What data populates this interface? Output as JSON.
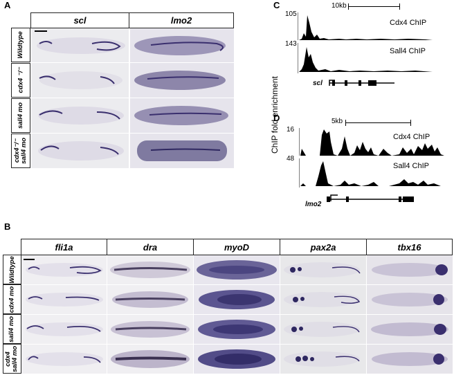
{
  "panel_A": {
    "letter": "A",
    "columns": [
      "scl",
      "lmo2"
    ],
    "rows": [
      {
        "lines": [
          "Wildtype"
        ]
      },
      {
        "lines": [
          "cdx4 ⁻/⁻"
        ]
      },
      {
        "lines": [
          "sall4 mo"
        ]
      },
      {
        "lines": [
          "cdx4⁻/⁻",
          "sall4 mo"
        ]
      }
    ]
  },
  "panel_B": {
    "letter": "B",
    "columns": [
      "fli1a",
      "dra",
      "myoD",
      "pax2a",
      "tbx16"
    ],
    "rows": [
      {
        "lines": [
          "Wildtype"
        ]
      },
      {
        "lines": [
          "cdx4 mo"
        ]
      },
      {
        "lines": [
          "sall4 mo"
        ]
      },
      {
        "lines": [
          "cdx4",
          "sall4 mo"
        ]
      }
    ]
  },
  "panel_C": {
    "letter": "C",
    "scale_label": "10kb",
    "tracks": [
      {
        "name": "Cdx4 ChIP",
        "max": "105"
      },
      {
        "name": "Sall4 ChIP",
        "max": "143"
      }
    ],
    "gene": "scl"
  },
  "panel_D": {
    "letter": "D",
    "scale_label": "5kb",
    "tracks": [
      {
        "name": "Cdx4 ChIP",
        "max": "16"
      },
      {
        "name": "Sall4 ChIP",
        "max": "48"
      }
    ],
    "gene": "lmo2"
  },
  "shared_ylabel": "ChIP fold enrichment",
  "colors": {
    "stain": "#3a2f6e",
    "embryo": "#d9d4e2",
    "background": "#ececec"
  }
}
